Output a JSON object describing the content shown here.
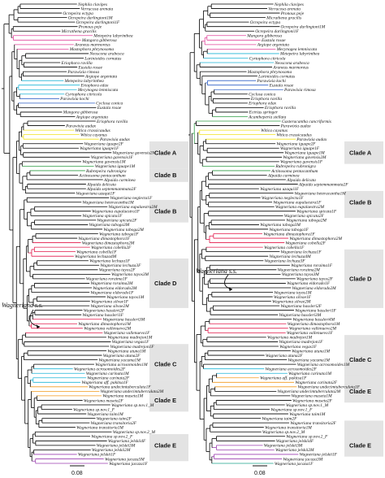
{
  "colors": {
    "branch": "#000000",
    "pink": "#e0449a",
    "cyan": "#1eb5d6",
    "blue": "#2f5fc6",
    "yellow": "#f1e21e",
    "green": "#2f9e45",
    "red": "#e2184a",
    "orange": "#f29a1d",
    "purple": "#9b3fb0",
    "teal": "#1ea58e",
    "cladeBox": "#e3e3e3"
  },
  "annotations": {
    "wagneriana_ss": "Wagneriana s.s.",
    "scale_bar": "0.08"
  },
  "trees": [
    {
      "id": "left",
      "taxa": [
        "Nephila clavipes",
        "Verrucosa arenata",
        "Ocrepeira ectypa",
        "Ocrepeira darlingtoni1M",
        "Ocrepeira darlingtoni1F",
        "Pronous peje",
        "Micrathena gracilis",
        "Metepeira labyrinthea",
        "Mangora gibberosa",
        "Araneus marmoreus",
        "Mastophora phrynosoma",
        "Neoscona arabesca",
        "Larinioides cornutus",
        "Eriophora ravilla",
        "Eustala rosae",
        "Parawixia rimosa",
        "Argiope argentata",
        "Metepeira labyrinthea",
        "Eriophora edax",
        "Mecynogea lemniscata",
        "Cyrtophora citricola",
        "Parawixia kochi",
        "Cyclosa conica",
        "Eustala rosae",
        "Mangora gibberosa",
        "Argiope argentata",
        "Eriophora ravilla",
        "Parawixia audax",
        "Witica crassicaudus",
        "Witica cayanus",
        "Parawixia audax",
        "Wagneriana iguape2F",
        "Wagneriana iguape1F",
        "Wagneriana gavensis2M",
        "Wagneriana gavensis1F",
        "Wagneriana gavensis1M",
        "Wagneriana iguape1M",
        "Rubrepeira rubronigra",
        "Actinosoma pentacanthum",
        "Alpaida carminea",
        "Alpaida delicata",
        "Alpaida septemmammata2F",
        "Wagneriana uzaqui1F",
        "Wagneriana neglecta1F",
        "Wagneriana heteracantha1M",
        "Wagneriana eupalaestra2M",
        "Wagneriana eupalaestra1F",
        "Wagneriana spicata1F",
        "Wagneriana spicata2F",
        "Wagneriana taboga3M",
        "Wagneriana taboga2M",
        "Wagneriana taboga1F",
        "Wagneriana dimastophora1F",
        "Wagneriana dimastophora2M",
        "Wagneriana cobella2F",
        "Wagneriana cobella1F",
        "Wagneriana lechuza4M",
        "Wagneriana lechuza1F",
        "Wagneriana lechuza3F",
        "Wagneriana tayos2F",
        "Wagneriana tayos3M",
        "Wagneriana roraima1F",
        "Wagneriana roraima2M",
        "Wagneriana eldorado2M",
        "Wagneriana eldorado1F",
        "Wagneriana tayos1M",
        "Wagneriana silvae1F",
        "Wagneriana silvae2M",
        "Wagneriana hassleri2F",
        "Wagneriana hassleri1F",
        "Wagneriana hassleri3M",
        "Wagneriana dimastophora1M",
        "Wagneriana vallenuevo2M",
        "Wagneriana vallenuevo1F",
        "Wagneriana madrejon1M",
        "Wagneriana vegas1F",
        "Wagneriana madrejon1F",
        "Wagneriana atuna1M",
        "Wagneriana atuna2F",
        "Wagneriana yacuma1M",
        "Wagneriana acrosomoides1M",
        "Wagneriana acrosomoides2F",
        "Wagneriana carinata1M",
        "Wagneriana carinata2F",
        "Wagneriana aff. pakitsa1F",
        "Wagneriana undecimtuberculata1F",
        "Wagneriana undecimtuberculata2M",
        "Wagneriana maseta1M",
        "Wagneriana maseta2F",
        "Wagneriana sp.nov.1_M",
        "Wagneriana sp.nov.1_F",
        "Wagneriana taim1M",
        "Wagneriana taim2F",
        "Wagneriana transitoria2F",
        "Wagneriana transitoria1M",
        "Wagneriana sp.nov.2_M",
        "Wagneriana sp.nov.2_F",
        "Wagneriana jelskii4F",
        "Wagneriana jelskii3M",
        "Wagneriana jelskii2M",
        "Wagneriana jelskii1F",
        "Wagneriana jacaza3M",
        "Wagneriana jacaza1F"
      ],
      "clades": [
        {
          "label": "Clade A",
          "row": 33
        },
        {
          "label": "Clade B",
          "row": 38
        },
        {
          "label": "Clade B",
          "row": 46
        },
        {
          "label": "Clade D",
          "row": 62
        },
        {
          "label": "Clade C",
          "row": 80
        },
        {
          "label": "Clade E",
          "row": 88
        },
        {
          "label": "Clade E",
          "row": 98
        }
      ]
    },
    {
      "id": "right",
      "taxa": [
        "Nephila clavipes",
        "Verrucosa arenata",
        "Pronous peje",
        "Micrathena gracilis",
        "Ocrepeira ectypa",
        "Ocrepeira darlingtoni1M",
        "Ocrepeira darlingtoni1F",
        "Mangora gibberosa",
        "Eustala rosae",
        "Argiope argentata",
        "Mecynogea lemniscata",
        "Metepeira labyrinthea",
        "Cyrtophora citricola",
        "Neoscona arabesca",
        "Araneus marmoreus",
        "Mastophora phrynosoma",
        "Larinioides cornutus",
        "Parawixia kochi",
        "Eustala rosae",
        "Parawixia rimosa",
        "Cyclosa conica",
        "Eriophora ravilla",
        "Eriophora edax",
        "Eriophora ravilla",
        "Ectrius springer",
        "Acantheperia stellata",
        "Gasteracantha cancriformis",
        "Parawixia audax",
        "Witica cayanus",
        "Witica crassicaudus",
        "Parawixia audax",
        "Wagneriana iguape2F",
        "Wagneriana iguape1F",
        "Wagneriana iguape1M",
        "Wagneriana gavensis2M",
        "Wagneriana gavensis1F",
        "Rubrepeira rubronigra",
        "Actinosoma pentacanthum",
        "Alpaida carminea",
        "Alpaida delicata",
        "Alpaida septemmammata2F",
        "Wagneriana uzaqui1F",
        "Wagneriana heteracantha1M",
        "Wagneriana neglecta1F",
        "Wagneriana eupalaestra1F",
        "Wagneriana eupalaestra2M",
        "Wagneriana spicata1F",
        "Wagneriana spicata2F",
        "Wagneriana taboga2M",
        "Wagneriana taboga3M",
        "Wagneriana taboga1F",
        "Wagneriana dimastophora1F",
        "Wagneriana dimastophora2M",
        "Wagneriana cobella2F",
        "Wagneriana cobella1F",
        "Wagneriana lechuza1F",
        "Wagneriana lechuza4M",
        "Wagneriana lechuza3F",
        "Wagneriana roraima1F",
        "Wagneriana roraima2M",
        "Wagneriana tayos3M",
        "Wagneriana tayos2F",
        "Wagneriana eldorado1F",
        "Wagneriana eldorado2M",
        "Wagneriana tayos1M",
        "Wagneriana silvae1F",
        "Wagneriana silvae2M",
        "Wagneriana hassleri2F",
        "Wagneriana hassleri1F",
        "Wagneriana hassleri3M",
        "Wagneriana hassleri4M",
        "Wagneriana dimastophora1M",
        "Wagneriana vallenuevo2M",
        "Wagneriana vallenuevo1F",
        "Wagneriana madrejon1M",
        "Wagneriana madrejon1F",
        "Wagneriana vegas1F",
        "Wagneriana atuna1M",
        "Wagneriana atuna2F",
        "Wagneriana yacuma1M",
        "Wagneriana acrosomoides1M",
        "Wagneriana acrosomoides2F",
        "Wagneriana carinata1M",
        "Wagneriana aff. pakitsa1F",
        "Wagneriana carinata2F",
        "Wagneriana undecimtuberculata1F",
        "Wagneriana undecimtuberculata2M",
        "Wagneriana maseta1M",
        "Wagneriana maseta2F",
        "Wagneriana sp.nov.1_M",
        "Wagneriana sp.nov.1_F",
        "Wagneriana taim1M",
        "Wagneriana taim2F",
        "Wagneriana transitoria2F",
        "Wagneriana transitoria1M",
        "Wagneriana sp.nov.2_M",
        "Wagneriana sp.nov.2_F",
        "Wagneriana jelskii4F",
        "Wagneriana jelskii3M",
        "Wagneriana jelskii2M",
        "Wagneriana jelskii1F",
        "Wagneriana jacaza3M",
        "Wagneriana jacaza1F"
      ],
      "clades": [
        {
          "label": "Clade A",
          "row": 33
        },
        {
          "label": "Clade B",
          "row": 44
        },
        {
          "label": "Clade D",
          "row": 61
        },
        {
          "label": "Clade C",
          "row": 79
        },
        {
          "label": "Clade E",
          "row": 86
        },
        {
          "label": "Clade E",
          "row": 98
        }
      ]
    }
  ]
}
